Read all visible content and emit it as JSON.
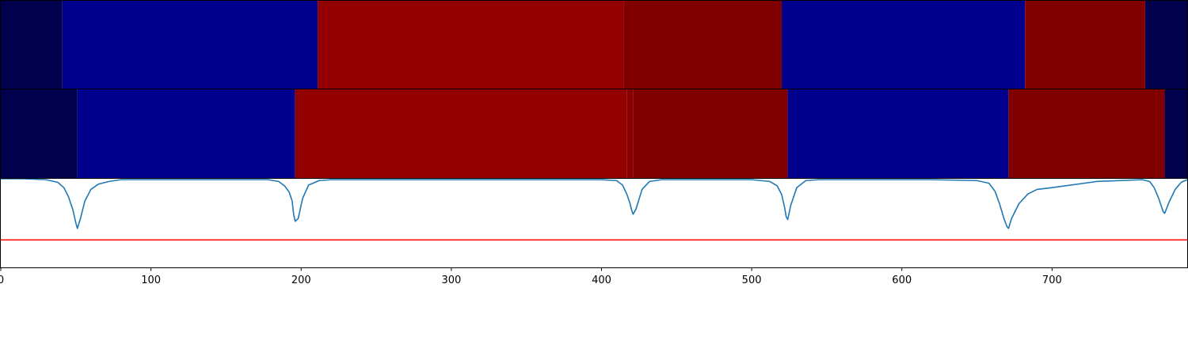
{
  "chart_data": [
    {
      "type": "heatmap",
      "xlim": [
        0,
        790
      ],
      "segments": [
        {
          "start": 0,
          "end": 41,
          "color": "#00004c"
        },
        {
          "start": 41,
          "end": 211,
          "color": "#00008c"
        },
        {
          "start": 211,
          "end": 415,
          "color": "#930000"
        },
        {
          "start": 415,
          "end": 520,
          "color": "#800000"
        },
        {
          "start": 520,
          "end": 682,
          "color": "#00008c"
        },
        {
          "start": 682,
          "end": 762,
          "color": "#800000"
        },
        {
          "start": 762,
          "end": 790,
          "color": "#00004c"
        }
      ]
    },
    {
      "type": "heatmap",
      "xlim": [
        0,
        790
      ],
      "segments": [
        {
          "start": 0,
          "end": 51,
          "color": "#00004c"
        },
        {
          "start": 51,
          "end": 196,
          "color": "#00008c"
        },
        {
          "start": 196,
          "end": 417,
          "color": "#930000"
        },
        {
          "start": 417,
          "end": 421,
          "color": "#8a0000"
        },
        {
          "start": 421,
          "end": 524,
          "color": "#800000"
        },
        {
          "start": 524,
          "end": 671,
          "color": "#00008c"
        },
        {
          "start": 671,
          "end": 775,
          "color": "#800000"
        },
        {
          "start": 775,
          "end": 790,
          "color": "#00004c"
        }
      ]
    },
    {
      "type": "line",
      "xlim": [
        0,
        790
      ],
      "ylim": [
        0,
        1
      ],
      "xticks": [
        0,
        100,
        200,
        300,
        400,
        500,
        600,
        700
      ],
      "series": [
        {
          "color": "#1f77b4",
          "x": [
            0,
            15,
            30,
            38,
            42,
            45,
            48,
            50,
            51,
            53,
            56,
            60,
            65,
            72,
            80,
            100,
            150,
            178,
            185,
            189,
            192,
            194,
            195,
            196,
            198,
            201,
            205,
            212,
            220,
            260,
            300,
            360,
            400,
            410,
            414,
            417,
            419,
            420,
            421,
            423,
            427,
            432,
            440,
            460,
            500,
            512,
            517,
            520,
            522,
            523,
            524,
            526,
            530,
            536,
            545,
            580,
            620,
            650,
            658,
            662,
            665,
            668,
            670,
            671,
            673,
            678,
            684,
            690,
            700,
            730,
            760,
            765,
            768,
            771,
            773,
            774,
            775,
            778,
            782,
            786,
            790
          ],
          "values": [
            1.0,
            1.0,
            0.99,
            0.96,
            0.9,
            0.8,
            0.65,
            0.5,
            0.44,
            0.55,
            0.75,
            0.88,
            0.94,
            0.97,
            0.99,
            0.99,
            0.99,
            0.99,
            0.97,
            0.92,
            0.85,
            0.75,
            0.6,
            0.52,
            0.55,
            0.78,
            0.93,
            0.98,
            0.99,
            0.99,
            0.99,
            0.99,
            0.99,
            0.98,
            0.93,
            0.82,
            0.72,
            0.65,
            0.6,
            0.66,
            0.88,
            0.97,
            0.99,
            0.99,
            0.99,
            0.97,
            0.92,
            0.82,
            0.67,
            0.57,
            0.54,
            0.7,
            0.9,
            0.98,
            0.99,
            0.99,
            0.99,
            0.98,
            0.95,
            0.86,
            0.72,
            0.55,
            0.46,
            0.44,
            0.55,
            0.72,
            0.83,
            0.88,
            0.9,
            0.97,
            0.99,
            0.97,
            0.9,
            0.78,
            0.68,
            0.63,
            0.61,
            0.74,
            0.88,
            0.96,
            0.99
          ]
        },
        {
          "color": "#ff0000",
          "x": [
            0,
            790
          ],
          "values": [
            0.31,
            0.31
          ]
        }
      ]
    }
  ]
}
